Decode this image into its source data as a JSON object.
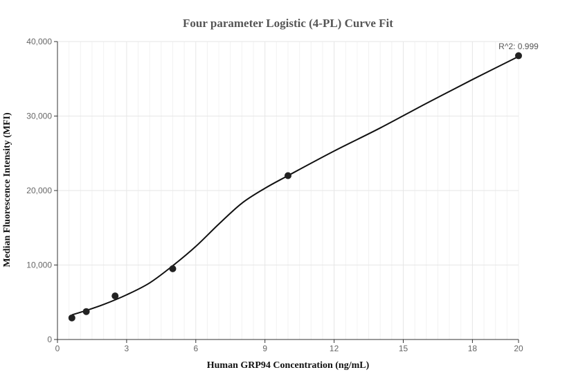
{
  "chart_data": {
    "type": "scatter",
    "title": "Four parameter Logistic (4-PL) Curve Fit",
    "xlabel": "Human GRP94 Concentration (ng/mL)",
    "ylabel": "Median Fluorescence Intensity (MFI)",
    "xlim": [
      0,
      20
    ],
    "ylim": [
      0,
      40000
    ],
    "xticks": [
      0,
      3,
      6,
      9,
      12,
      15,
      18,
      20
    ],
    "xtick_labels": [
      "0",
      "3",
      "6",
      "9",
      "12",
      "15",
      "18",
      "20"
    ],
    "yticks": [
      0,
      10000,
      20000,
      30000,
      40000
    ],
    "ytick_labels": [
      "0",
      "10,000",
      "20,000",
      "30,000",
      "40,000"
    ],
    "grid": true,
    "series": [
      {
        "points": [
          {
            "x": 0.625,
            "y": 2900
          },
          {
            "x": 1.25,
            "y": 3750
          },
          {
            "x": 2.5,
            "y": 5850
          },
          {
            "x": 5,
            "y": 9500
          },
          {
            "x": 10,
            "y": 22000
          },
          {
            "x": 20,
            "y": 38100
          }
        ],
        "color": "#222222"
      }
    ],
    "fit_curve": {
      "color": "#111111",
      "x": [
        0.625,
        1.25,
        2.0,
        3.0,
        4.0,
        5.0,
        6.0,
        7.0,
        8.0,
        9.0,
        10.0,
        12.0,
        14.0,
        16.0,
        18.0,
        20.0
      ],
      "y": [
        3300,
        3900,
        4700,
        6000,
        7600,
        9900,
        12500,
        15500,
        18300,
        20300,
        22000,
        25300,
        28400,
        31700,
        34900,
        38000
      ]
    },
    "annotations": [
      {
        "text": "R^2: 0.999"
      }
    ]
  }
}
